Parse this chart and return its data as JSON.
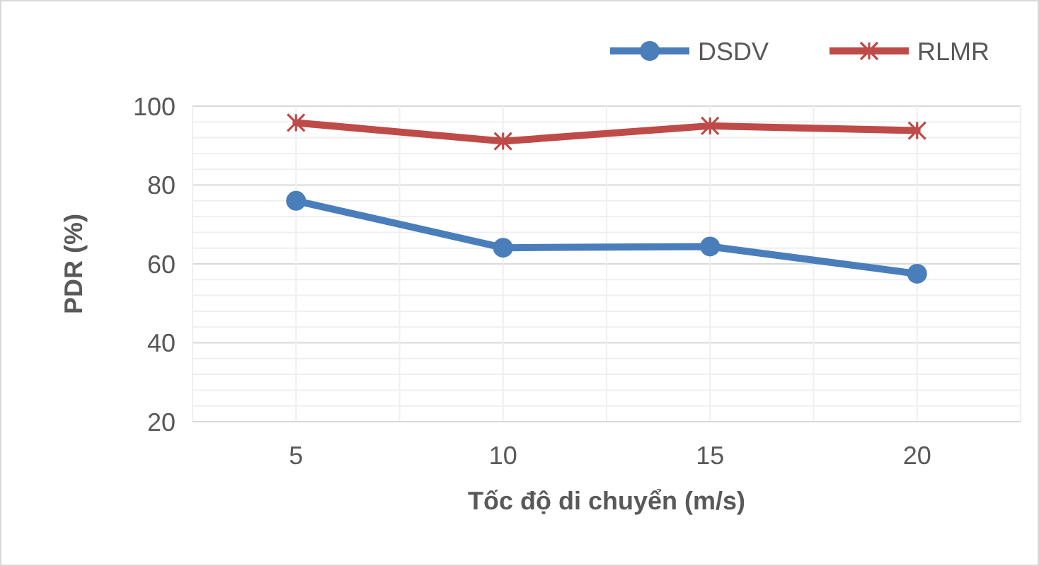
{
  "chart_data": {
    "type": "line",
    "xlabel": "Tốc độ di chuyển (m/s)",
    "ylabel": "PDR (%)",
    "categories": [
      "5",
      "10",
      "15",
      "20"
    ],
    "series": [
      {
        "name": "DSDV",
        "color": "#4a7ebb",
        "values": [
          76,
          64.1,
          64.4,
          57.5
        ],
        "marker": "circle"
      },
      {
        "name": "RLMR",
        "color": "#be4b48",
        "values": [
          95.8,
          91.1,
          95,
          93.8
        ],
        "marker": "cross"
      }
    ],
    "ylim": [
      20,
      100
    ],
    "yticks": [
      20,
      {
        "value": 24,
        "label": null
      },
      {
        "value": 28,
        "label": null
      },
      {
        "value": 32,
        "label": null
      },
      {
        "value": 36,
        "label": null
      },
      40,
      {
        "value": 44,
        "label": null
      },
      {
        "value": 48,
        "label": null
      },
      {
        "value": 52,
        "label": null
      },
      {
        "value": 56,
        "label": null
      },
      60,
      {
        "value": 64,
        "label": null
      },
      {
        "value": 68,
        "label": null
      },
      {
        "value": 72,
        "label": null
      },
      {
        "value": 76,
        "label": null
      },
      80,
      {
        "value": 84,
        "label": null
      },
      {
        "value": 88,
        "label": null
      },
      {
        "value": 92,
        "label": null
      },
      {
        "value": 96,
        "label": null
      },
      100
    ],
    "grid": true,
    "legend": "top right",
    "line_style": "solid"
  }
}
